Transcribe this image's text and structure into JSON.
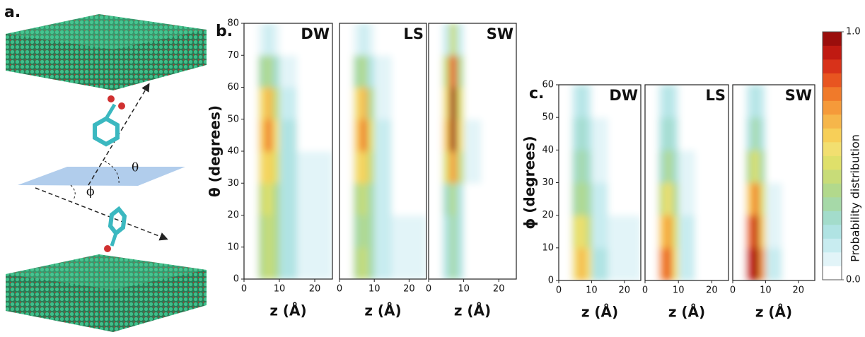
{
  "panel_labels": [
    "a.",
    "b.",
    "c."
  ],
  "diagram_labels": [
    "θ",
    "ϕ"
  ],
  "colorbar": {
    "label": "Probability distribution",
    "lim": [
      0,
      1
    ],
    "ticks": [
      {
        "value": 0,
        "label": "0.0"
      },
      {
        "value": 1,
        "label": "1.0"
      }
    ],
    "colors": [
      "#ffffff",
      "#e2f4f8",
      "#c8ecf0",
      "#b0e3e3",
      "#a3dccb",
      "#a6d9a8",
      "#b2d98c",
      "#c8dc78",
      "#dfe06a",
      "#f2df70",
      "#f7cf58",
      "#f6b64a",
      "#f59a3a",
      "#f07a2a",
      "#e85520",
      "#d8321a",
      "#c01a12",
      "#9b0e0c"
    ]
  },
  "chart_data": [
    {
      "type": "heatmap",
      "title": "DW",
      "x_label": "z (Å)",
      "y_label": "θ (degrees)",
      "xlim": [
        0,
        25
      ],
      "xticks": [
        0,
        10,
        20
      ],
      "ylim": [
        0,
        80
      ],
      "yticks": [
        0,
        10,
        20,
        30,
        40,
        50,
        60,
        70,
        80
      ],
      "xbins": [
        0,
        4,
        6,
        8,
        10,
        15,
        25
      ],
      "ybins": [
        0,
        10,
        20,
        30,
        40,
        50,
        60,
        70,
        80
      ],
      "values": [
        [
          0.05,
          0.35,
          0.4,
          0.35,
          0.2,
          0.1
        ],
        [
          0.03,
          0.35,
          0.4,
          0.35,
          0.2,
          0.1
        ],
        [
          0.03,
          0.4,
          0.45,
          0.35,
          0.2,
          0.08
        ],
        [
          0.05,
          0.5,
          0.6,
          0.45,
          0.2,
          0.08
        ],
        [
          0.05,
          0.6,
          0.75,
          0.5,
          0.2,
          0.05
        ],
        [
          0.03,
          0.5,
          0.65,
          0.4,
          0.15,
          0.03
        ],
        [
          0.02,
          0.3,
          0.35,
          0.25,
          0.1,
          0.02
        ],
        [
          0,
          0.1,
          0.15,
          0.1,
          0.03,
          0
        ]
      ]
    },
    {
      "type": "heatmap",
      "title": "LS",
      "x_label": "z (Å)",
      "xlim": [
        0,
        25
      ],
      "xticks": [
        0,
        10,
        20
      ],
      "ylim": [
        0,
        80
      ],
      "xbins": [
        0,
        4,
        6,
        8,
        10,
        15,
        25
      ],
      "ybins": [
        0,
        10,
        20,
        30,
        40,
        50,
        60,
        70,
        80
      ],
      "values": [
        [
          0.03,
          0.35,
          0.4,
          0.3,
          0.15,
          0.06
        ],
        [
          0.02,
          0.3,
          0.35,
          0.3,
          0.15,
          0.06
        ],
        [
          0.02,
          0.35,
          0.4,
          0.3,
          0.15,
          0.05
        ],
        [
          0.03,
          0.5,
          0.6,
          0.4,
          0.15,
          0.05
        ],
        [
          0.03,
          0.6,
          0.75,
          0.45,
          0.15,
          0.04
        ],
        [
          0.02,
          0.5,
          0.65,
          0.35,
          0.1,
          0.02
        ],
        [
          0.01,
          0.3,
          0.35,
          0.2,
          0.06,
          0.01
        ],
        [
          0,
          0.1,
          0.15,
          0.08,
          0.02,
          0
        ]
      ]
    },
    {
      "type": "heatmap",
      "title": "SW",
      "x_label": "z (Å)",
      "xlim": [
        0,
        25
      ],
      "xticks": [
        0,
        10,
        20
      ],
      "ylim": [
        0,
        80
      ],
      "xbins": [
        0,
        4,
        6,
        8,
        10,
        15,
        25
      ],
      "ybins": [
        0,
        10,
        20,
        30,
        40,
        50,
        60,
        70,
        80
      ],
      "values": [
        [
          0,
          0.2,
          0.3,
          0.2,
          0.05,
          0.02
        ],
        [
          0,
          0.2,
          0.3,
          0.2,
          0.05,
          0.02
        ],
        [
          0,
          0.25,
          0.35,
          0.2,
          0.05,
          0.02
        ],
        [
          0,
          0.45,
          0.7,
          0.4,
          0.08,
          0.02
        ],
        [
          0,
          0.6,
          0.95,
          0.5,
          0.08,
          0.02
        ],
        [
          0,
          0.55,
          0.95,
          0.45,
          0.05,
          0.02
        ],
        [
          0,
          0.4,
          0.8,
          0.35,
          0.03,
          0
        ],
        [
          0,
          0.15,
          0.4,
          0.15,
          0,
          0
        ]
      ]
    },
    {
      "type": "heatmap",
      "title": "DW",
      "x_label": "z (Å)",
      "y_label": "ϕ (degrees)",
      "xlim": [
        0,
        25
      ],
      "xticks": [
        0,
        10,
        20
      ],
      "ylim": [
        0,
        60
      ],
      "yticks": [
        0,
        10,
        20,
        30,
        40,
        50,
        60
      ],
      "xbins": [
        0,
        4,
        6,
        8,
        10,
        15,
        25
      ],
      "ybins": [
        0,
        10,
        20,
        30,
        40,
        50,
        60
      ],
      "values": [
        [
          0.05,
          0.55,
          0.65,
          0.5,
          0.2,
          0.08
        ],
        [
          0.03,
          0.45,
          0.5,
          0.4,
          0.15,
          0.06
        ],
        [
          0.02,
          0.3,
          0.35,
          0.3,
          0.12,
          0.05
        ],
        [
          0.02,
          0.25,
          0.3,
          0.25,
          0.1,
          0.04
        ],
        [
          0.01,
          0.2,
          0.25,
          0.2,
          0.08,
          0.03
        ],
        [
          0,
          0.15,
          0.2,
          0.15,
          0.05,
          0.02
        ]
      ]
    },
    {
      "type": "heatmap",
      "title": "LS",
      "x_label": "z (Å)",
      "xlim": [
        0,
        25
      ],
      "xticks": [
        0,
        10,
        20
      ],
      "ylim": [
        0,
        60
      ],
      "xbins": [
        0,
        4,
        6,
        8,
        10,
        15,
        25
      ],
      "ybins": [
        0,
        10,
        20,
        30,
        40,
        50,
        60
      ],
      "values": [
        [
          0.05,
          0.7,
          0.8,
          0.55,
          0.15,
          0.05
        ],
        [
          0.03,
          0.6,
          0.7,
          0.45,
          0.12,
          0.04
        ],
        [
          0.02,
          0.4,
          0.5,
          0.35,
          0.1,
          0.03
        ],
        [
          0.01,
          0.25,
          0.35,
          0.25,
          0.07,
          0.02
        ],
        [
          0,
          0.2,
          0.25,
          0.2,
          0.05,
          0.02
        ],
        [
          0,
          0.15,
          0.2,
          0.15,
          0.04,
          0.01
        ]
      ]
    },
    {
      "type": "heatmap",
      "title": "SW",
      "x_label": "z (Å)",
      "xlim": [
        0,
        25
      ],
      "xticks": [
        0,
        10,
        20
      ],
      "ylim": [
        0,
        60
      ],
      "xbins": [
        0,
        4,
        6,
        8,
        10,
        15,
        25
      ],
      "ybins": [
        0,
        10,
        20,
        30,
        40,
        50,
        60
      ],
      "values": [
        [
          0.05,
          0.85,
          1.0,
          0.7,
          0.15,
          0.05
        ],
        [
          0.03,
          0.75,
          0.9,
          0.6,
          0.1,
          0.03
        ],
        [
          0.02,
          0.6,
          0.75,
          0.45,
          0.08,
          0.02
        ],
        [
          0.01,
          0.35,
          0.45,
          0.3,
          0.05,
          0.02
        ],
        [
          0,
          0.2,
          0.3,
          0.2,
          0.03,
          0.01
        ],
        [
          0,
          0.15,
          0.2,
          0.12,
          0.02,
          0.01
        ]
      ]
    }
  ]
}
